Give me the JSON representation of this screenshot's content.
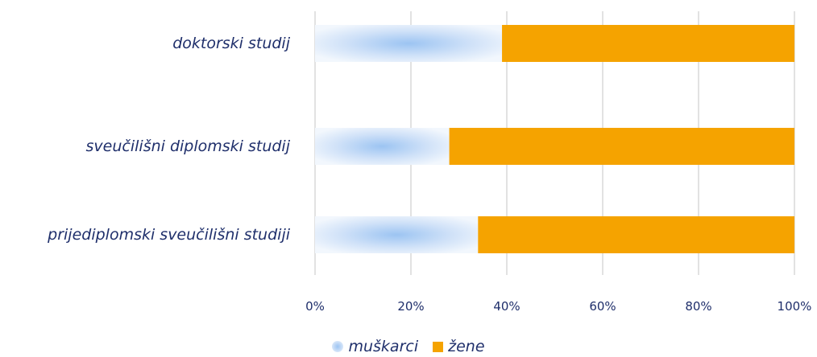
{
  "chart_data": {
    "type": "bar",
    "orientation": "horizontal",
    "stacked_percent": true,
    "categories": [
      "doktorski studij",
      "sveučilišni diplomski studij",
      "prijediplomski sveučilišni studiji"
    ],
    "series": [
      {
        "name": "muškarci",
        "values": [
          39,
          28,
          34
        ],
        "color": "#a8c9f2"
      },
      {
        "name": "žene",
        "values": [
          61,
          72,
          66
        ],
        "color": "#f5a300"
      }
    ],
    "xlim": [
      0,
      100
    ],
    "xticks": [
      "0%",
      "20%",
      "40%",
      "60%",
      "80%",
      "100%"
    ],
    "grid": "vertical",
    "legend": "bottom-center"
  }
}
